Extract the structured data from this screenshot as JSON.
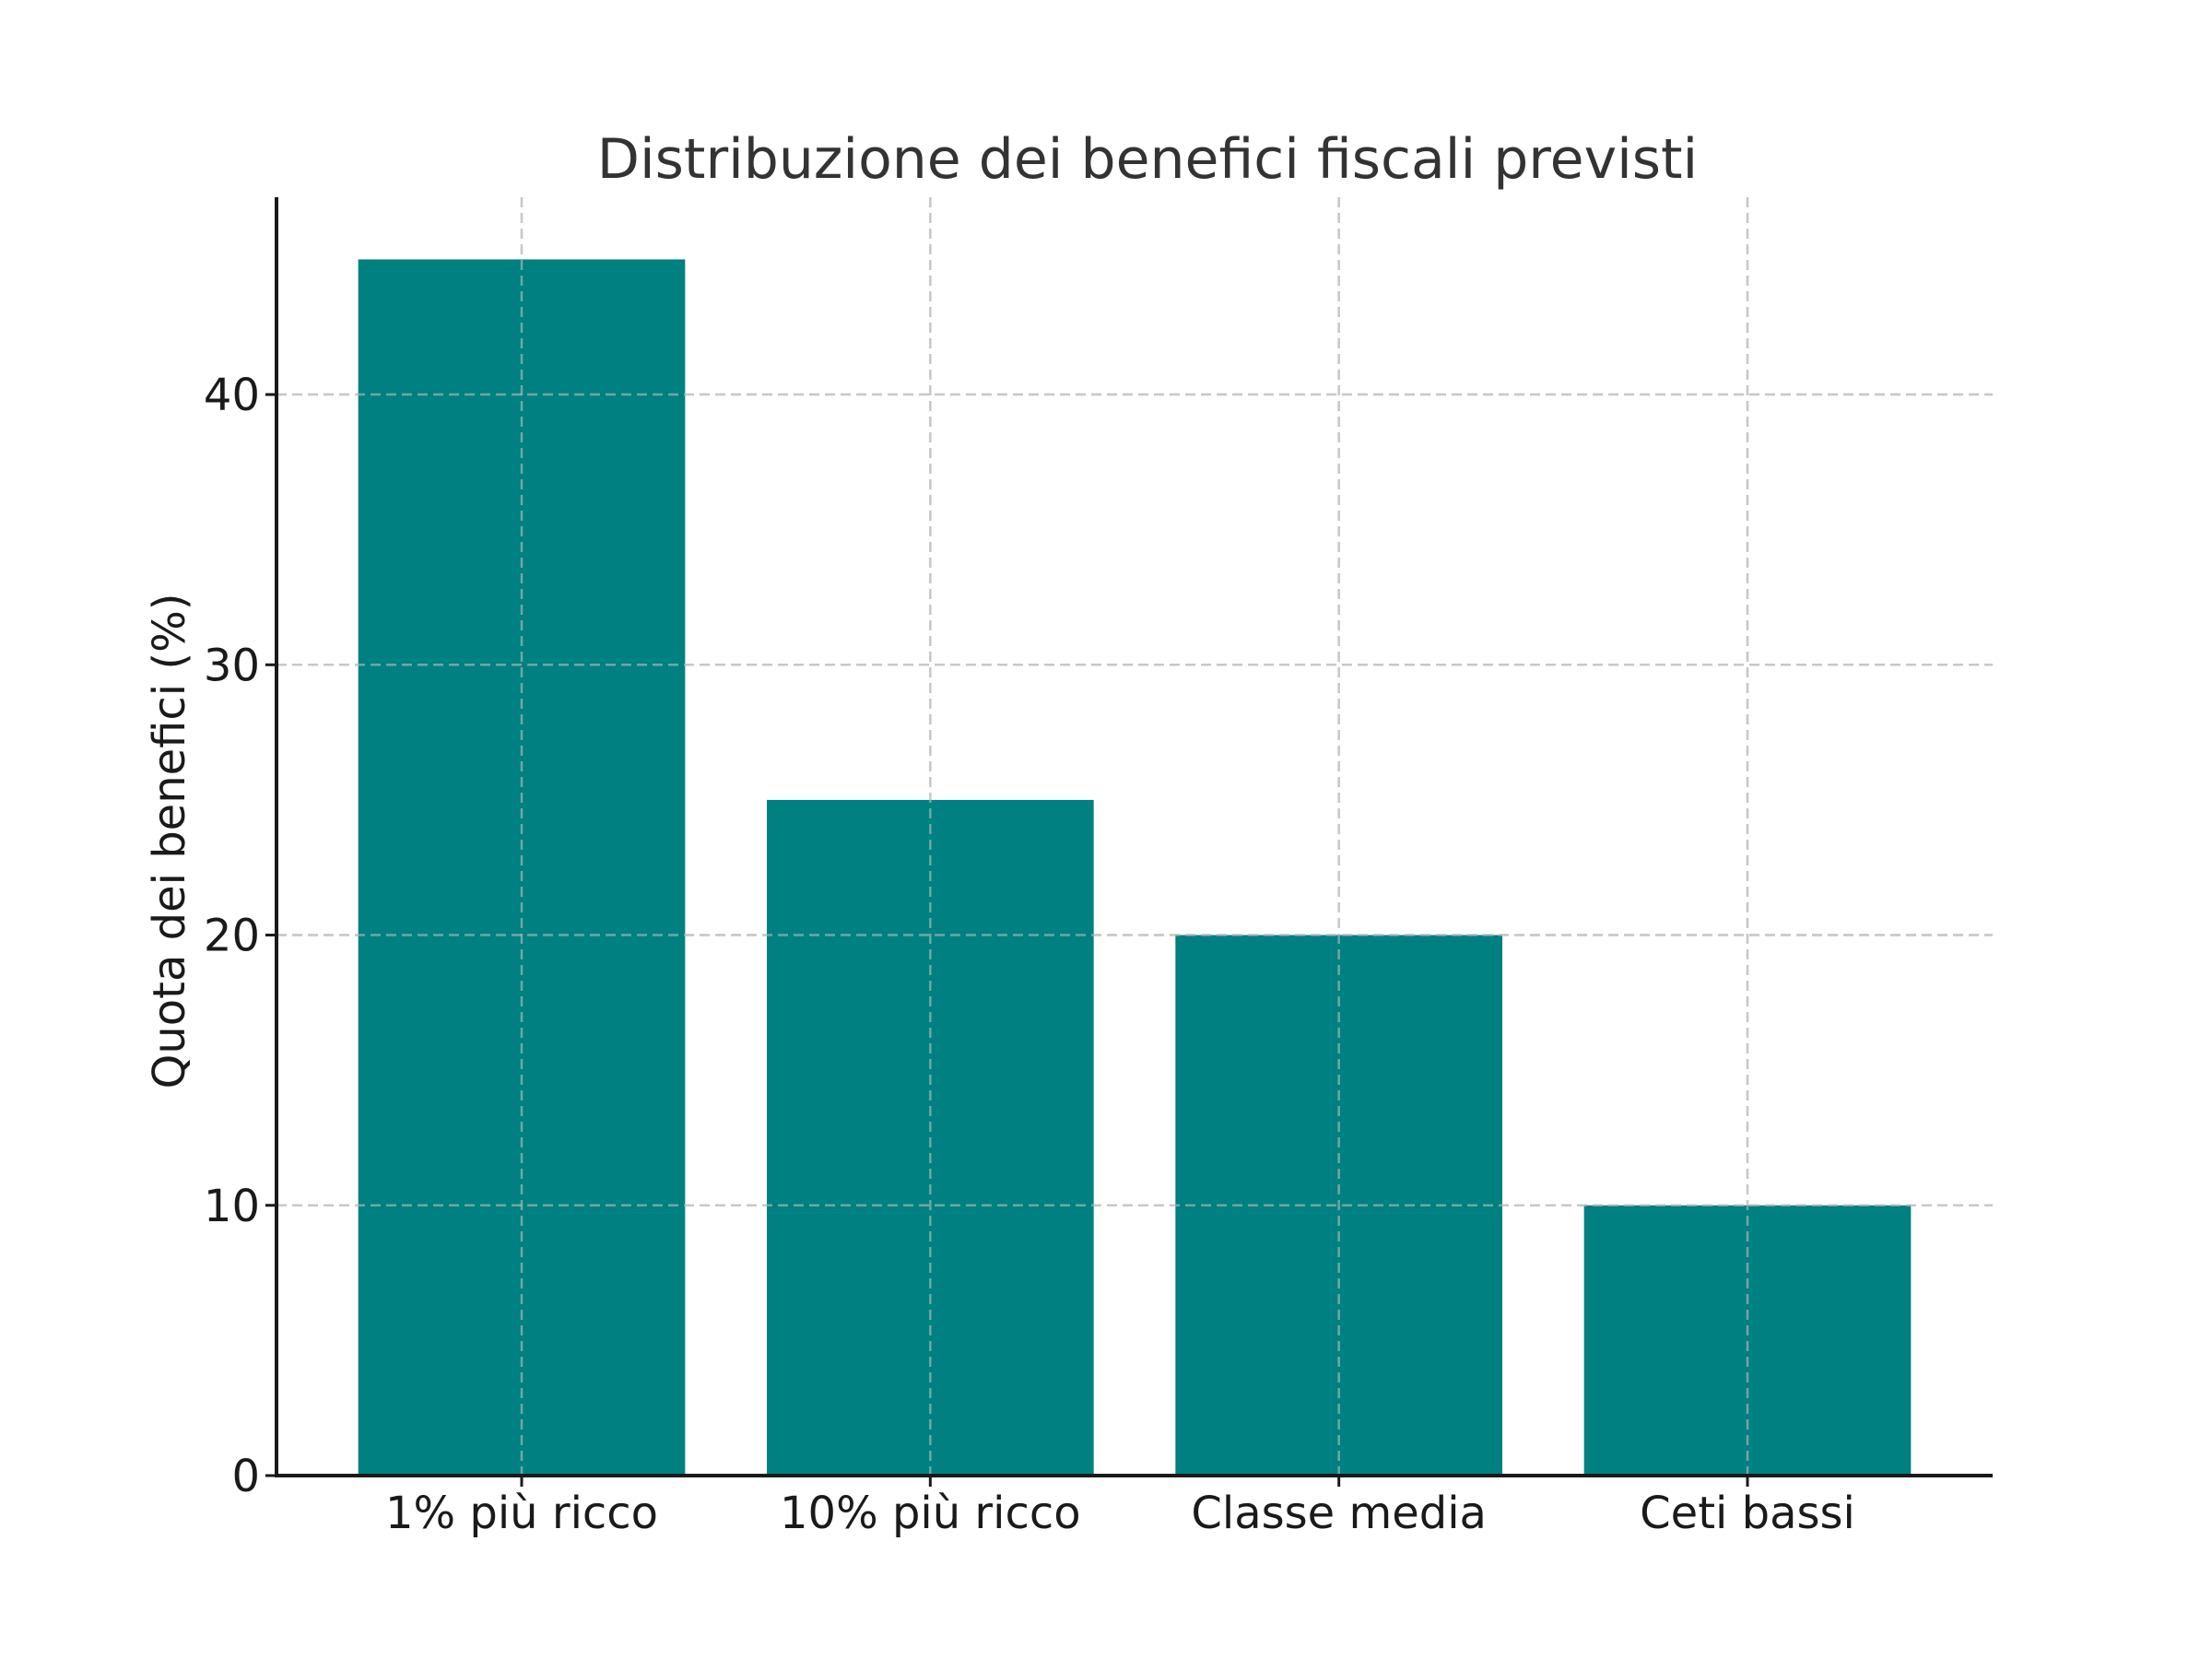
{
  "chart_data": {
    "type": "bar",
    "title": "Distribuzione dei benefici fiscali previsti",
    "xlabel": "",
    "ylabel": "Quota dei benefici (%)",
    "categories": [
      "1% più ricco",
      "10% più ricco",
      "Classe media",
      "Ceti bassi"
    ],
    "values": [
      45,
      25,
      20,
      10
    ],
    "ylim": [
      0,
      47.3
    ],
    "xlim": [
      -0.6,
      3.6
    ],
    "yticks": [
      0,
      10,
      20,
      30,
      40
    ],
    "ytick_labels": [
      "0",
      "10",
      "20",
      "30",
      "40"
    ],
    "grid": true,
    "grid_style": "dashed",
    "legend": "none",
    "bar_color": "#008080"
  }
}
